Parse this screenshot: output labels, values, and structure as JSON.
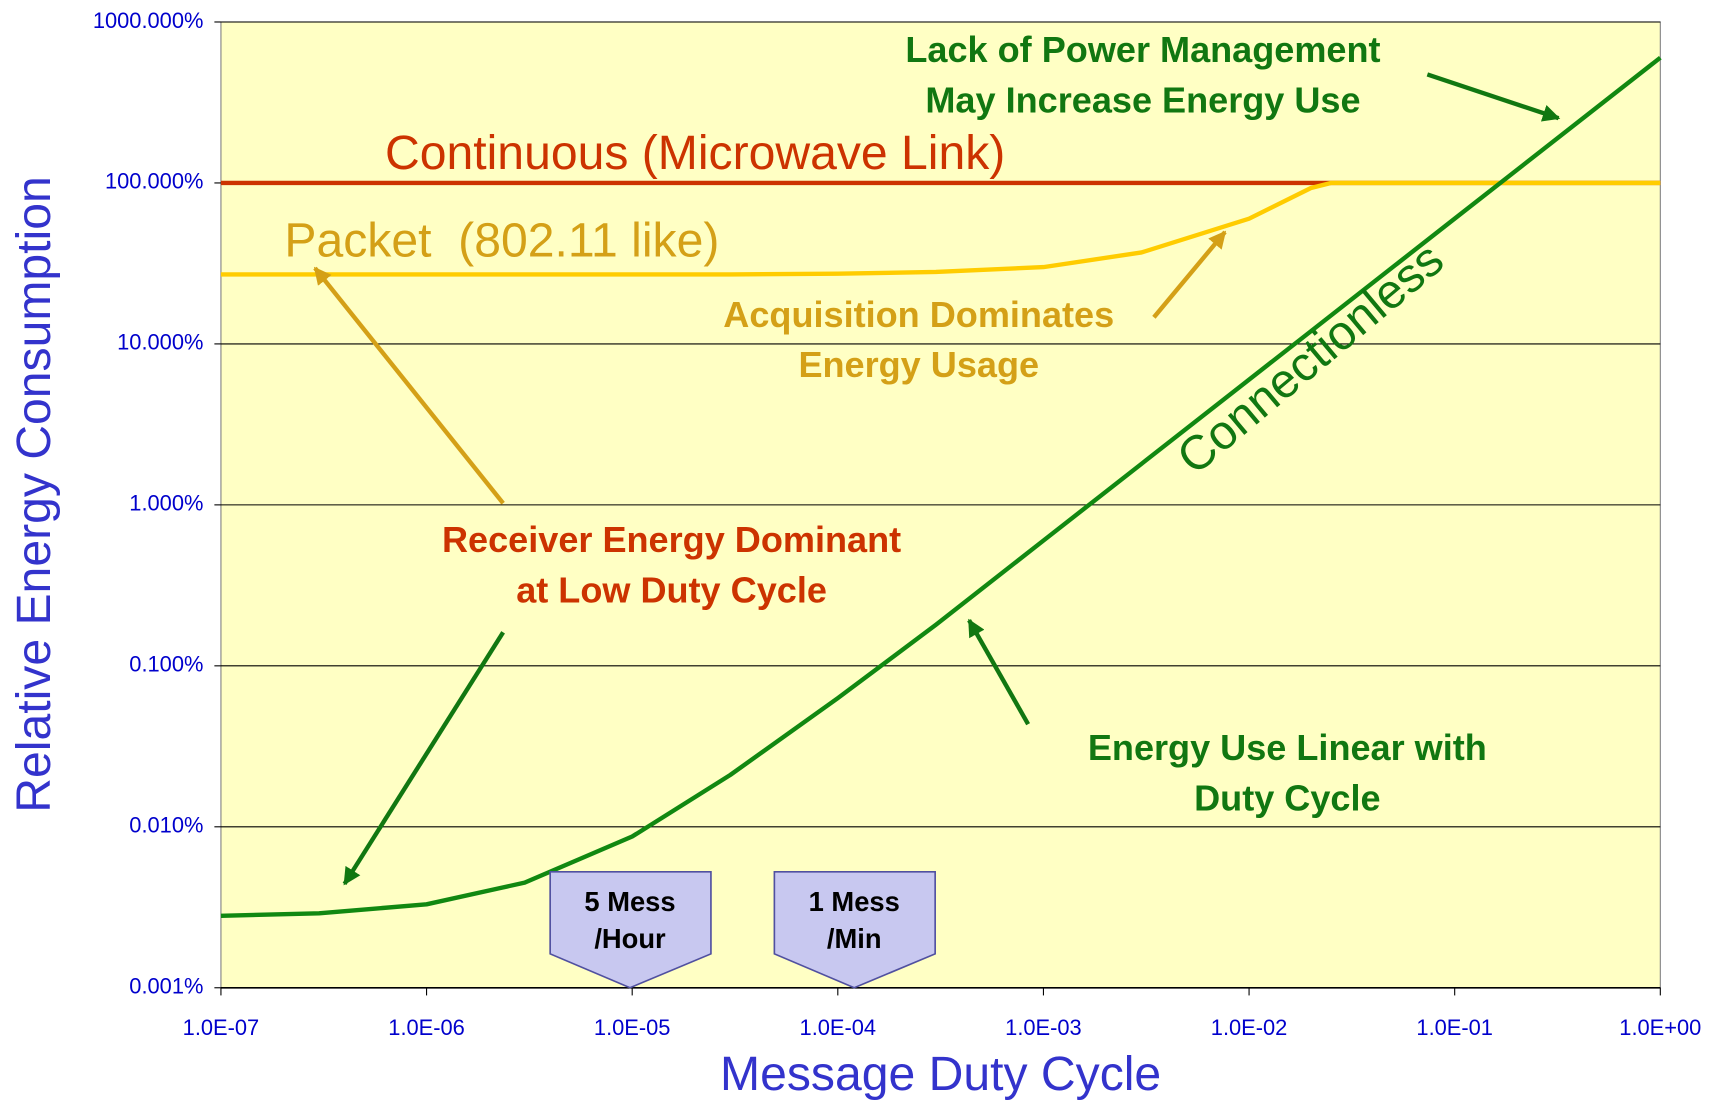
{
  "chart_data": {
    "type": "line",
    "x_label": "Message Duty Cycle",
    "y_label": "Relative Energy Consumption",
    "x": [
      1e-07,
      3e-07,
      1e-06,
      3e-06,
      1e-05,
      3e-05,
      0.0001,
      0.0003,
      0.001,
      0.003,
      0.01,
      0.02,
      0.025,
      0.1,
      1
    ],
    "series": [
      {
        "name": "Continuous (Microwave Link)",
        "color": "#cc3300",
        "values": [
          100,
          100,
          100,
          100,
          100,
          100,
          100,
          100,
          100,
          100,
          100,
          100,
          100,
          100,
          100
        ]
      },
      {
        "name": "Packet  (802.11 like)",
        "color": "#ffcc00",
        "label_color": "#d4a017",
        "values": [
          27,
          27,
          27,
          27,
          27,
          27,
          27.3,
          28,
          30,
          37,
          60,
          93,
          100,
          100,
          100
        ]
      },
      {
        "name": "Connectionless",
        "color": "#118811",
        "label_color": "#117711",
        "values": [
          0.0028,
          0.0029,
          0.0033,
          0.0045,
          0.0087,
          0.021,
          0.063,
          0.18,
          0.6,
          1.8,
          6,
          12,
          15,
          60,
          600
        ]
      }
    ],
    "xlog": true,
    "ylog": true,
    "xlim": [
      1e-07,
      1
    ],
    "ylim": [
      0.001,
      1000
    ],
    "xticks": [
      {
        "value": 1e-07,
        "label": "1.0E-07"
      },
      {
        "value": 1e-06,
        "label": "1.0E-06"
      },
      {
        "value": 1e-05,
        "label": "1.0E-05"
      },
      {
        "value": 0.0001,
        "label": "1.0E-04"
      },
      {
        "value": 0.001,
        "label": "1.0E-03"
      },
      {
        "value": 0.01,
        "label": "1.0E-02"
      },
      {
        "value": 0.1,
        "label": "1.0E-01"
      },
      {
        "value": 1,
        "label": "1.0E+00"
      }
    ],
    "yticks": [
      {
        "value": 0.001,
        "label": "0.001%"
      },
      {
        "value": 0.01,
        "label": "0.010%"
      },
      {
        "value": 0.1,
        "label": "0.100%"
      },
      {
        "value": 1,
        "label": "1.000%"
      },
      {
        "value": 10,
        "label": "10.000%"
      },
      {
        "value": 100,
        "label": "100.000%"
      },
      {
        "value": 1000,
        "label": "1000.000%"
      }
    ],
    "grid": true,
    "background": "#ffffc4",
    "annotations": [
      {
        "text": [
          "Lack of Power Management",
          "May Increase Energy Use"
        ],
        "color": "#117711"
      },
      {
        "text": [
          "Acquisition Dominates",
          "Energy Usage"
        ],
        "color": "#d4a017"
      },
      {
        "text": [
          "Receiver Energy Dominant",
          "at Low Duty Cycle"
        ],
        "color": "#cc3300"
      },
      {
        "text": [
          "Energy Use Linear with",
          "Duty Cycle"
        ],
        "color": "#117711"
      }
    ],
    "callouts": [
      [
        "5 Mess",
        "/Hour"
      ],
      [
        "1 Mess",
        "/Min"
      ]
    ]
  }
}
